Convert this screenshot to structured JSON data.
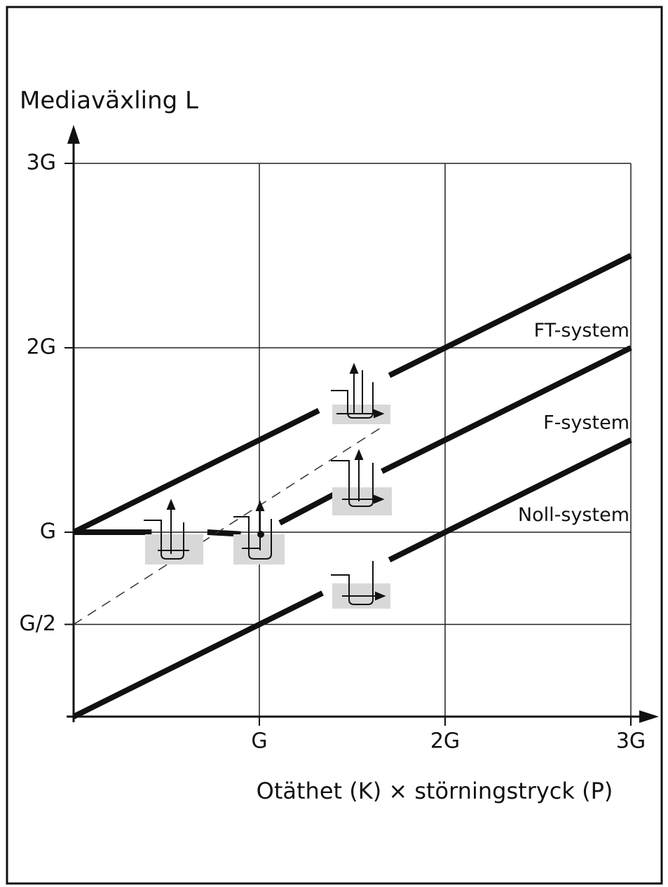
{
  "chart_data": {
    "type": "line",
    "title": "Mediaväxling L",
    "x_label": "Otäthet (K) × störningstryck (P)",
    "xlim": [
      0,
      3
    ],
    "ylim": [
      0,
      3
    ],
    "xticks": [
      {
        "value": 1,
        "label": "G"
      },
      {
        "value": 2,
        "label": "2G"
      },
      {
        "value": 3,
        "label": "3G"
      }
    ],
    "yticks": [
      {
        "value": 0.5,
        "label": "G/2"
      },
      {
        "value": 1,
        "label": "G"
      },
      {
        "value": 2,
        "label": "2G"
      },
      {
        "value": 3,
        "label": "3G"
      }
    ],
    "grid": true,
    "series": [
      {
        "name": "FT-system",
        "color": "#111111",
        "x": [
          0,
          1.32,
          1.5,
          1.7,
          3
        ],
        "values": [
          1,
          1.66,
          null,
          1.85,
          2.5
        ]
      },
      {
        "name": "F-system",
        "color": "#111111",
        "x": [
          0,
          0.42,
          0.55,
          0.72,
          0.9,
          1.0,
          1.11,
          1.43,
          1.55,
          1.66,
          3
        ],
        "values": [
          1,
          1,
          null,
          1,
          0.99,
          null,
          1.05,
          1.22,
          null,
          1.33,
          2
        ]
      },
      {
        "name": "Noll-system",
        "color": "#111111",
        "x": [
          0,
          1.34,
          1.5,
          1.7,
          3
        ],
        "values": [
          0,
          0.67,
          null,
          0.85,
          1.5
        ]
      },
      {
        "color": "#333333",
        "dashed": true,
        "x": [
          0,
          1.66
        ],
        "values": [
          0.5,
          1.57
        ]
      }
    ]
  }
}
